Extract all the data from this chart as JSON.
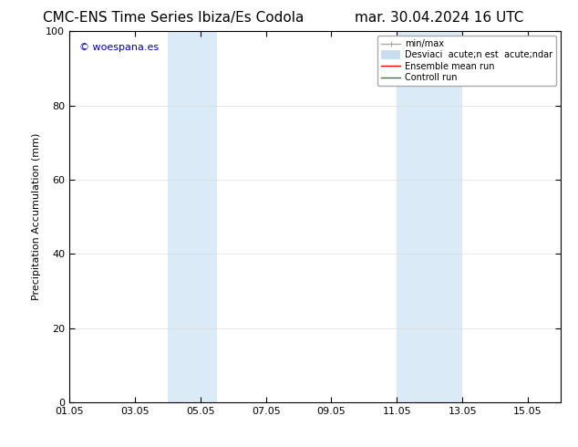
{
  "title_left": "CMC-ENS Time Series Ibiza/Es Codola",
  "title_right": "mar. 30.04.2024 16 UTC",
  "ylabel": "Precipitation Accumulation (mm)",
  "ylim": [
    0,
    100
  ],
  "yticks": [
    0,
    20,
    40,
    60,
    80,
    100
  ],
  "xlim": [
    1,
    16
  ],
  "xtick_labels": [
    "01.05",
    "03.05",
    "05.05",
    "07.05",
    "09.05",
    "11.05",
    "13.05",
    "15.05"
  ],
  "xtick_positions": [
    1,
    3,
    5,
    7,
    9,
    11,
    13,
    15
  ],
  "shaded_regions": [
    {
      "xstart": 4.0,
      "xend": 5.5
    },
    {
      "xstart": 11.0,
      "xend": 13.0
    }
  ],
  "shade_color": "#daeaf7",
  "shade_alpha": 1.0,
  "background_color": "#ffffff",
  "watermark_text": "© woespana.es",
  "watermark_color": "#0000cc",
  "minmax_color": "#aaaaaa",
  "std_color": "#c8ddf0",
  "ensemble_color": "#ff0000",
  "control_color": "#228822",
  "grid_color": "#dddddd",
  "title_fontsize": 11,
  "label_fontsize": 8,
  "tick_fontsize": 8,
  "legend_fontsize": 7,
  "watermark_fontsize": 8
}
